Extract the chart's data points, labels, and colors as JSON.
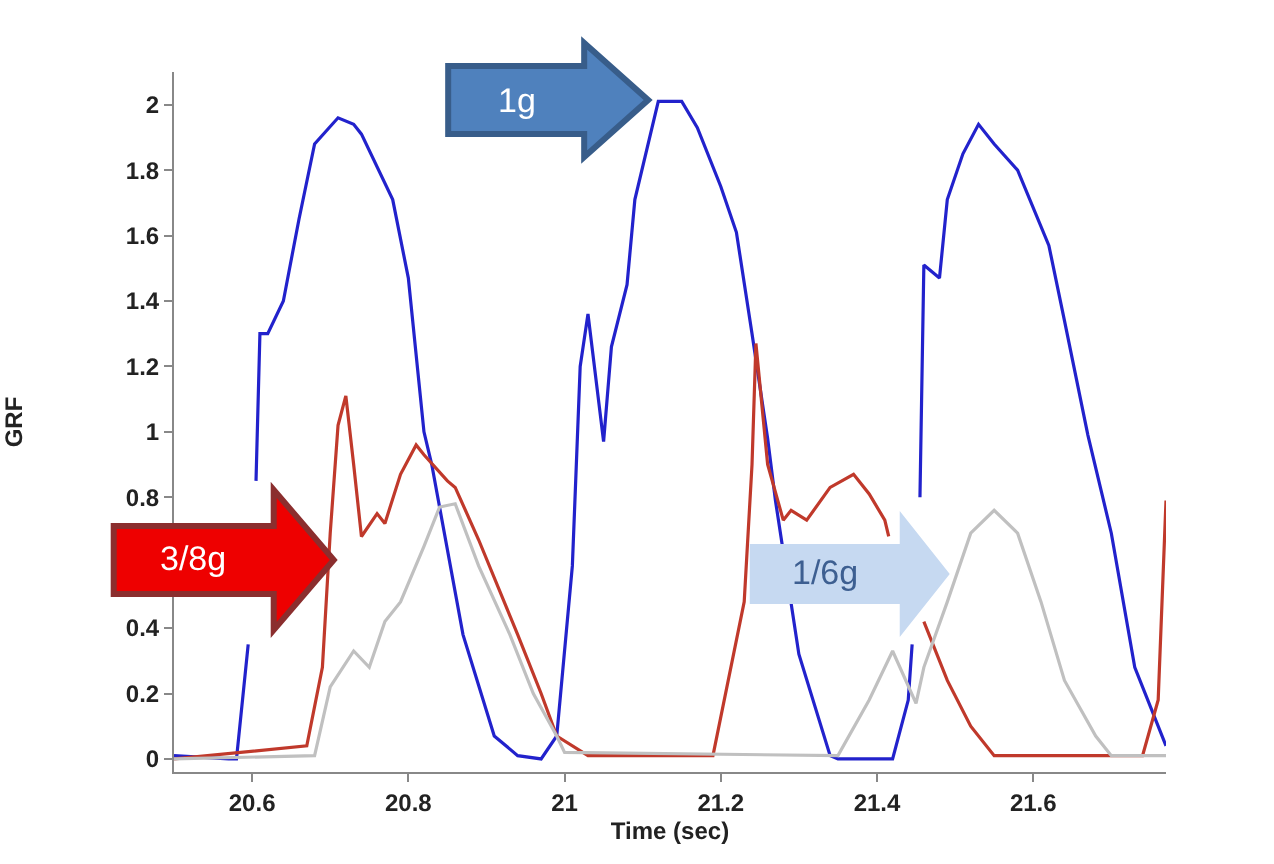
{
  "chart_data": {
    "type": "line",
    "xlabel": "Time (sec)",
    "ylabel": "GRF",
    "xlim": [
      20.5,
      21.77
    ],
    "ylim": [
      -0.04,
      2.1
    ],
    "xticks": [
      20.6,
      20.8,
      21,
      21.2,
      21.4,
      21.6
    ],
    "yticks": [
      0,
      0.2,
      0.4,
      {
        "value": 0.6,
        "label": null
      },
      0.8,
      1,
      1.2,
      1.4,
      1.6,
      1.8,
      2
    ],
    "marker": "none",
    "line_style": "solid",
    "series": [
      {
        "color": "#2222cc",
        "x": [
          20.5,
          20.57,
          20.58,
          20.595,
          20.6,
          20.605,
          20.61,
          20.62,
          20.64,
          20.66,
          20.68,
          20.71,
          20.73,
          20.74,
          20.78,
          20.8,
          20.82,
          20.83,
          20.87,
          20.91,
          20.94,
          20.97,
          20.99,
          21.01,
          21.02,
          21.03,
          21.05,
          21.06,
          21.08,
          21.09,
          21.12,
          21.15,
          21.17,
          21.2,
          21.22,
          21.24,
          21.26,
          21.27,
          21.3,
          21.34,
          21.35,
          21.42,
          21.44,
          21.445,
          21.45,
          21.455,
          21.46,
          21.48,
          21.49,
          21.51,
          21.53,
          21.55,
          21.58,
          21.62,
          21.64,
          21.67,
          21.7,
          21.73,
          21.77
        ],
        "values": [
          0.01,
          0.0,
          0.0,
          0.35,
          null,
          0.85,
          1.3,
          1.3,
          1.4,
          1.65,
          1.88,
          1.96,
          1.94,
          1.91,
          1.71,
          1.47,
          1.0,
          0.9,
          0.38,
          0.07,
          0.01,
          0.0,
          0.07,
          0.59,
          1.2,
          1.36,
          0.97,
          1.26,
          1.45,
          1.71,
          2.01,
          2.01,
          1.93,
          1.75,
          1.61,
          1.3,
          0.98,
          0.79,
          0.32,
          0.01,
          0.0,
          0.0,
          0.18,
          0.35,
          null,
          0.8,
          1.51,
          1.47,
          1.71,
          1.85,
          1.94,
          1.88,
          1.8,
          1.57,
          1.34,
          0.99,
          0.69,
          0.28,
          0.04
        ]
      },
      {
        "color": "#c0392b",
        "x": [
          20.5,
          20.67,
          20.69,
          20.7,
          20.71,
          20.72,
          20.73,
          20.74,
          20.76,
          20.77,
          20.79,
          20.81,
          20.82,
          20.85,
          20.86,
          20.89,
          20.94,
          20.97,
          20.99,
          21.03,
          21.19,
          21.23,
          21.24,
          21.245,
          21.26,
          21.28,
          21.29,
          21.31,
          21.34,
          21.37,
          21.39,
          21.41,
          21.415,
          21.42,
          21.46,
          21.49,
          21.52,
          21.55,
          21.74,
          21.76,
          21.77
        ],
        "values": [
          0.0,
          0.04,
          0.28,
          0.69,
          1.02,
          1.11,
          0.9,
          0.68,
          0.75,
          0.72,
          0.87,
          0.96,
          0.93,
          0.85,
          0.83,
          0.67,
          0.38,
          0.2,
          0.07,
          0.01,
          0.01,
          0.48,
          0.9,
          1.27,
          0.9,
          0.73,
          0.76,
          0.73,
          0.83,
          0.87,
          0.81,
          0.73,
          0.68,
          null,
          0.42,
          0.24,
          0.1,
          0.01,
          0.01,
          0.18,
          0.79
        ]
      },
      {
        "color": "#c0c0c0",
        "x": [
          20.5,
          20.68,
          20.7,
          20.73,
          20.75,
          20.77,
          20.79,
          20.82,
          20.84,
          20.86,
          20.89,
          20.93,
          20.96,
          20.99,
          21.0,
          21.35,
          21.39,
          21.42,
          21.45,
          21.46,
          21.49,
          21.52,
          21.55,
          21.58,
          21.61,
          21.64,
          21.68,
          21.7,
          21.77
        ],
        "values": [
          0.0,
          0.01,
          0.22,
          0.33,
          0.28,
          0.42,
          0.48,
          0.65,
          0.77,
          0.78,
          0.59,
          0.38,
          0.2,
          0.07,
          0.02,
          0.01,
          0.18,
          0.33,
          0.17,
          0.28,
          0.48,
          0.69,
          0.76,
          0.69,
          0.48,
          0.24,
          0.07,
          0.01,
          0.01
        ]
      }
    ],
    "annotations": [
      "1g",
      "3/8g",
      "1/6g"
    ]
  }
}
